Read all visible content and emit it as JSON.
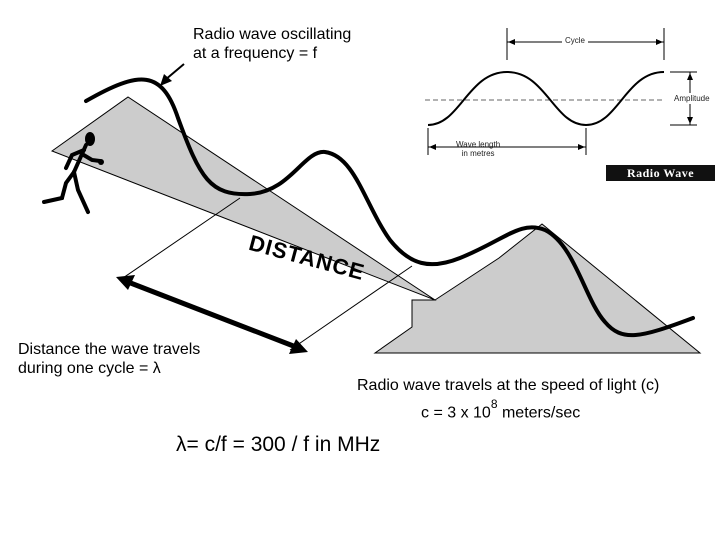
{
  "labels": {
    "oscillating_line1": "Radio wave oscillating",
    "oscillating_line2": "at a frequency = f",
    "distance": "DISTANCE",
    "cycle_line1": "Distance the wave travels",
    "cycle_line2": "during one cycle = λ",
    "speed": "Radio wave travels at the speed of light (c)",
    "c_prefix": "c = 3 x 10",
    "c_exp": "8",
    "c_suffix": "meters/sec",
    "formula": "λ= c/f = 300 / f in MHz"
  },
  "inset": {
    "cycle": "Cycle",
    "amplitude": "Amplitude",
    "wavelength_line1": "Wave length",
    "wavelength_line2": "in metres",
    "badge": "Radio Wave"
  },
  "colors": {
    "plane": "#cccccc",
    "outline": "#000000",
    "wave": "#000000"
  }
}
